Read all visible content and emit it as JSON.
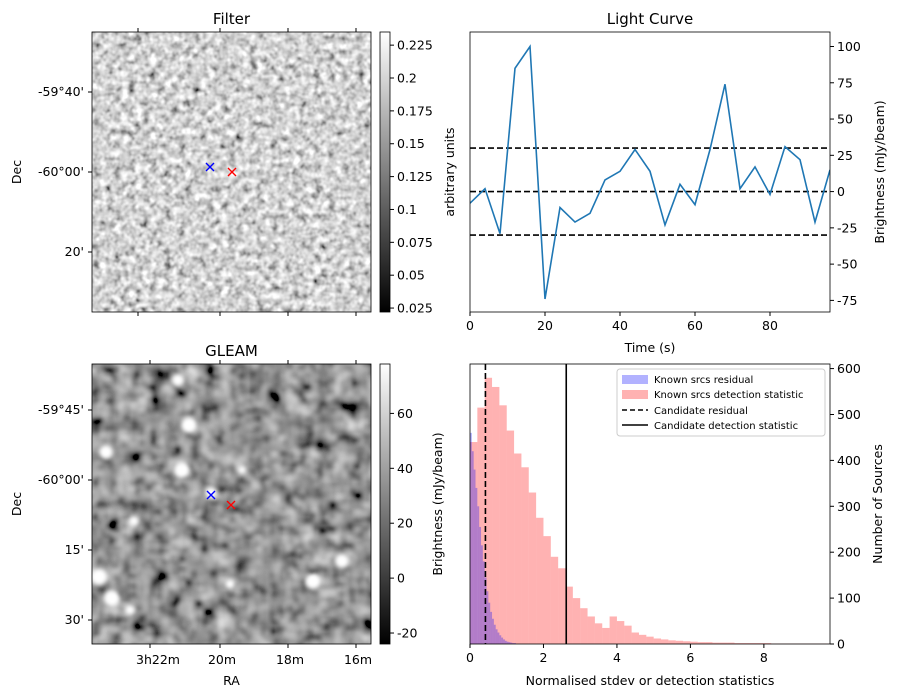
{
  "chart_data": [
    {
      "type": "heatmap",
      "title": "Filter",
      "ylabel": "Dec",
      "xlabel": "",
      "y_tick_labels": [
        "-59°40'",
        "-60°00'",
        "20'"
      ],
      "colorbar": {
        "label": "arbitrary units",
        "ticks": [
          0.025,
          0.05,
          0.075,
          0.1,
          0.125,
          0.15,
          0.175,
          0.2,
          0.225
        ],
        "range": [
          0.022,
          0.235
        ]
      },
      "markers": [
        {
          "symbol": "x",
          "color": "#0000ff"
        },
        {
          "symbol": "x",
          "color": "#ff0000"
        }
      ]
    },
    {
      "type": "line",
      "title": "Light Curve",
      "xlabel": "Time (s)",
      "ylabel": "Brightness (mJy/beam)",
      "xlim": [
        0,
        96
      ],
      "ylim": [
        -83,
        110
      ],
      "x_ticks": [
        0,
        20,
        40,
        60,
        80
      ],
      "y_ticks": [
        -75,
        -50,
        -25,
        0,
        25,
        50,
        75,
        100
      ],
      "series": [
        {
          "color": "#1f77b4",
          "x": [
            0,
            4,
            8,
            12,
            16,
            20,
            24,
            28,
            32,
            36,
            40,
            44,
            48,
            52,
            56,
            60,
            64,
            68,
            72,
            76,
            80,
            84,
            88,
            92,
            96
          ],
          "y": [
            -8,
            2,
            -29,
            85,
            100,
            -74,
            -11,
            -21,
            -15,
            8,
            14,
            29,
            14,
            -23,
            5,
            -9,
            29,
            74,
            2,
            17,
            -2,
            31,
            22,
            -21,
            15
          ]
        }
      ],
      "hlines": [
        {
          "y": 30,
          "style": "dashed",
          "color": "#000000"
        },
        {
          "y": 0,
          "style": "dashed",
          "color": "#000000"
        },
        {
          "y": -30,
          "style": "dashed",
          "color": "#000000"
        }
      ]
    },
    {
      "type": "heatmap",
      "title": "GLEAM",
      "xlabel": "RA",
      "ylabel": "Dec",
      "x_tick_labels": [
        "3h22m",
        "20m",
        "18m",
        "16m"
      ],
      "y_tick_labels": [
        "-59°45'",
        "-60°00'",
        "15'",
        "30'"
      ],
      "colorbar": {
        "label": "Brightness (mJy/beam)",
        "ticks": [
          -20,
          0,
          20,
          40,
          60
        ],
        "range": [
          -24,
          78
        ]
      },
      "markers": [
        {
          "symbol": "x",
          "color": "#0000ff"
        },
        {
          "symbol": "x",
          "color": "#ff0000"
        }
      ]
    },
    {
      "type": "bar",
      "title": "",
      "xlabel": "Normalised stdev or detection statistics",
      "ylabel": "Number of Sources",
      "xlim": [
        0,
        9.8
      ],
      "ylim": [
        0,
        610
      ],
      "x_ticks": [
        0,
        2,
        4,
        6,
        8
      ],
      "y_ticks": [
        0,
        100,
        200,
        300,
        400,
        500,
        600
      ],
      "legend_position": "top-right",
      "series": [
        {
          "name": "Known srcs residual",
          "color": "#0000ff",
          "bin_width": 0.05,
          "bin_start": 0,
          "values": [
            460,
            420,
            380,
            340,
            300,
            255,
            215,
            180,
            145,
            115,
            90,
            70,
            55,
            42,
            32,
            25,
            19,
            14,
            10,
            7,
            5,
            4,
            3,
            2,
            2
          ]
        },
        {
          "name": "Known srcs detection statistic",
          "color": "#ff0000",
          "bin_width": 0.2,
          "bin_start": 0,
          "values": [
            440,
            515,
            580,
            560,
            520,
            465,
            415,
            385,
            330,
            275,
            235,
            190,
            165,
            125,
            100,
            78,
            60,
            45,
            35,
            60,
            50,
            40,
            25,
            20,
            16,
            12,
            10,
            8,
            7,
            6,
            5,
            4,
            4,
            3,
            3,
            3,
            2,
            2,
            2,
            2,
            2,
            1,
            1,
            1,
            1,
            1,
            1,
            1,
            1
          ]
        }
      ],
      "vlines": [
        {
          "name": "Candidate residual",
          "x": 0.42,
          "style": "dashed",
          "color": "#000000"
        },
        {
          "name": "Candidate detection statistic",
          "x": 2.62,
          "style": "solid",
          "color": "#000000"
        }
      ]
    }
  ]
}
